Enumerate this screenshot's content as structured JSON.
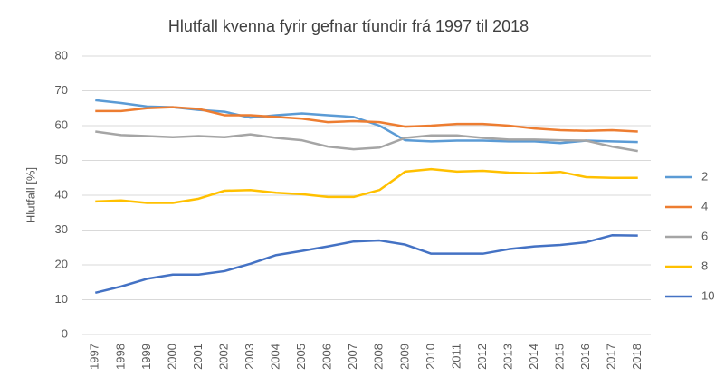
{
  "chart_data": {
    "type": "line",
    "title": "Hlutfall kvenna fyrir gefnar tíundir frá 1997 til 2018",
    "y_label": "Hlutfall [%]",
    "categories": [
      "1997",
      "1998",
      "1999",
      "2000",
      "2001",
      "2002",
      "2003",
      "2004",
      "2005",
      "2006",
      "2007",
      "2008",
      "2009",
      "2010",
      "2011",
      "2012",
      "2013",
      "2014",
      "2015",
      "2016",
      "2017",
      "2018"
    ],
    "series": [
      {
        "name": "2",
        "color": "#5b9bd5",
        "values": [
          67.3,
          66.5,
          65.5,
          65.3,
          64.5,
          64,
          62.3,
          63,
          63.5,
          63,
          62.5,
          60,
          55.8,
          55.5,
          55.7,
          55.7,
          55.5,
          55.5,
          55,
          55.7,
          55.5,
          55.3
        ]
      },
      {
        "name": "4",
        "color": "#ed7d31",
        "values": [
          64.2,
          64.2,
          65,
          65.3,
          64.8,
          63,
          63,
          62.5,
          62,
          61,
          61.3,
          61,
          59.7,
          60,
          60.5,
          60.5,
          60,
          59.2,
          58.7,
          58.5,
          58.7,
          58.3
        ]
      },
      {
        "name": "6",
        "color": "#a5a5a5",
        "values": [
          58.3,
          57.3,
          57,
          56.7,
          57,
          56.7,
          57.5,
          56.5,
          55.8,
          54,
          53.2,
          53.7,
          56.5,
          57.2,
          57.2,
          56.5,
          56,
          56,
          55.8,
          55.7,
          54,
          52.7
        ]
      },
      {
        "name": "8",
        "color": "#ffc000",
        "values": [
          38.2,
          38.5,
          37.8,
          37.8,
          39,
          41.3,
          41.5,
          40.7,
          40.3,
          39.5,
          39.5,
          41.5,
          46.8,
          47.5,
          46.8,
          47,
          46.5,
          46.3,
          46.7,
          45.2,
          45,
          45
        ]
      },
      {
        "name": "10",
        "color": "#4472c4",
        "values": [
          12,
          13.8,
          16,
          17.2,
          17.2,
          18.2,
          20.3,
          22.8,
          24,
          25.3,
          26.7,
          27,
          25.8,
          23.2,
          23.2,
          23.2,
          24.5,
          25.3,
          25.7,
          26.5,
          28.5,
          28.4
        ]
      }
    ],
    "ylim": [
      0,
      80
    ],
    "yticks": [
      0,
      10,
      20,
      30,
      40,
      50,
      60,
      70,
      80
    ],
    "grid": true,
    "legend": "right"
  }
}
